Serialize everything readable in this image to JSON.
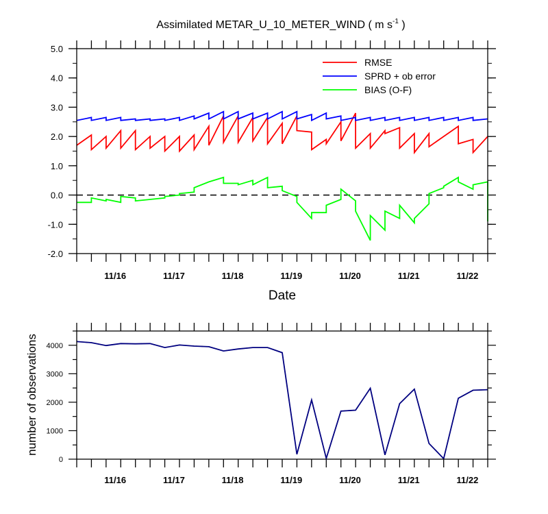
{
  "chart_data": [
    {
      "type": "line",
      "title_main": "Assimilated METAR_U_10_METER_WIND ( m s",
      "title_sup": "-1",
      "title_end": " )",
      "xlabel": "Date",
      "ylabel": "",
      "x_tick_labels": [
        "11/16",
        "11/17",
        "11/18",
        "11/19",
        "11/20",
        "11/21",
        "11/22"
      ],
      "y_tick_labels": [
        "-2.0",
        "-1.0",
        "0.0",
        "1.0",
        "2.0",
        "3.0",
        "4.0",
        "5.0"
      ],
      "xlim": [
        0,
        28
      ],
      "ylim": [
        -2.0,
        5.0
      ],
      "zero_line": "dashed",
      "legend_position": "top-right",
      "series": [
        {
          "name": "RMSE",
          "color": "#ff0000",
          "values": [
            [
              1.7,
              2.05
            ],
            [
              1.55,
              2.0
            ],
            [
              1.6,
              2.2
            ],
            [
              1.6,
              2.2
            ],
            [
              1.55,
              2.0
            ],
            [
              1.6,
              2.0
            ],
            [
              1.5,
              2.0
            ],
            [
              1.5,
              2.05
            ],
            [
              1.55,
              2.35
            ],
            [
              1.7,
              2.7
            ],
            [
              1.8,
              2.7
            ],
            [
              1.8,
              2.65
            ],
            [
              1.85,
              2.65
            ],
            [
              1.75,
              2.45
            ],
            [
              1.75,
              2.7
            ],
            [
              2.2,
              2.15
            ],
            [
              1.55,
              1.9
            ],
            [
              1.75,
              2.5
            ],
            [
              1.85,
              2.8
            ],
            [
              1.6,
              2.1
            ],
            [
              1.6,
              2.2
            ],
            [
              2.1,
              2.3
            ],
            [
              1.6,
              2.1
            ],
            [
              1.45,
              2.1
            ],
            [
              1.65,
              2.0
            ],
            [
              2.0,
              2.35
            ],
            [
              1.75,
              1.9
            ],
            [
              1.45,
              2.0
            ]
          ]
        },
        {
          "name": "SPRD + ob error",
          "color": "#0000ff",
          "values": [
            [
              2.55,
              2.65
            ],
            [
              2.55,
              2.65
            ],
            [
              2.55,
              2.65
            ],
            [
              2.55,
              2.6
            ],
            [
              2.55,
              2.6
            ],
            [
              2.55,
              2.6
            ],
            [
              2.55,
              2.65
            ],
            [
              2.55,
              2.7
            ],
            [
              2.6,
              2.8
            ],
            [
              2.6,
              2.85
            ],
            [
              2.6,
              2.85
            ],
            [
              2.6,
              2.8
            ],
            [
              2.6,
              2.8
            ],
            [
              2.6,
              2.85
            ],
            [
              2.6,
              2.85
            ],
            [
              2.6,
              2.75
            ],
            [
              2.55,
              2.8
            ],
            [
              2.6,
              2.7
            ],
            [
              2.55,
              2.65
            ],
            [
              2.55,
              2.65
            ],
            [
              2.55,
              2.65
            ],
            [
              2.55,
              2.65
            ],
            [
              2.55,
              2.65
            ],
            [
              2.55,
              2.65
            ],
            [
              2.55,
              2.65
            ],
            [
              2.55,
              2.65
            ],
            [
              2.55,
              2.65
            ],
            [
              2.55,
              2.6
            ]
          ]
        },
        {
          "name": "BIAS (O-F)",
          "color": "#00ff00",
          "values": [
            [
              -0.25,
              -0.25
            ],
            [
              -0.1,
              -0.2
            ],
            [
              -0.15,
              -0.25
            ],
            [
              -0.05,
              -0.1
            ],
            [
              -0.2,
              -0.15
            ],
            [
              -0.15,
              -0.1
            ],
            [
              -0.05,
              0.0
            ],
            [
              0.05,
              0.1
            ],
            [
              0.25,
              0.45
            ],
            [
              0.45,
              0.6
            ],
            [
              0.4,
              0.4
            ],
            [
              0.35,
              0.5
            ],
            [
              0.35,
              0.6
            ],
            [
              0.25,
              0.3
            ],
            [
              0.15,
              -0.05
            ],
            [
              -0.25,
              -0.8
            ],
            [
              -0.6,
              -0.6
            ],
            [
              -0.35,
              -0.15
            ],
            [
              0.2,
              -0.2
            ],
            [
              -0.55,
              -1.55
            ],
            [
              -0.7,
              -1.2
            ],
            [
              -0.55,
              -0.8
            ],
            [
              -0.35,
              -0.95
            ],
            [
              -0.8,
              -0.3
            ],
            [
              0.05,
              0.25
            ],
            [
              0.3,
              0.6
            ],
            [
              0.45,
              0.2
            ],
            [
              0.35,
              0.45
            ]
          ]
        }
      ],
      "bias_final_value": -0.9
    },
    {
      "type": "line",
      "xlabel": "",
      "ylabel": "number of observations",
      "x_tick_labels": [
        "11/16",
        "11/17",
        "11/18",
        "11/19",
        "11/20",
        "11/21",
        "11/22"
      ],
      "y_tick_labels": [
        "0",
        "1000",
        "2000",
        "3000",
        "4000"
      ],
      "xlim": [
        0,
        28
      ],
      "ylim": [
        0,
        4500
      ],
      "series": [
        {
          "name": "",
          "color": "#000080",
          "x": [
            0,
            1,
            2,
            3,
            4,
            5,
            6,
            7,
            8,
            9,
            10,
            11,
            12,
            13,
            14,
            15,
            16,
            17,
            18,
            19,
            20,
            21,
            22,
            23,
            24,
            25,
            26,
            27,
            28
          ],
          "values": [
            4130,
            4090,
            3990,
            4060,
            4050,
            4060,
            3920,
            4010,
            3970,
            3950,
            3800,
            3870,
            3920,
            3920,
            3740,
            170,
            2080,
            30,
            1690,
            1720,
            2490,
            150,
            1950,
            2460,
            550,
            20,
            2140,
            2420,
            2440
          ]
        }
      ]
    }
  ]
}
